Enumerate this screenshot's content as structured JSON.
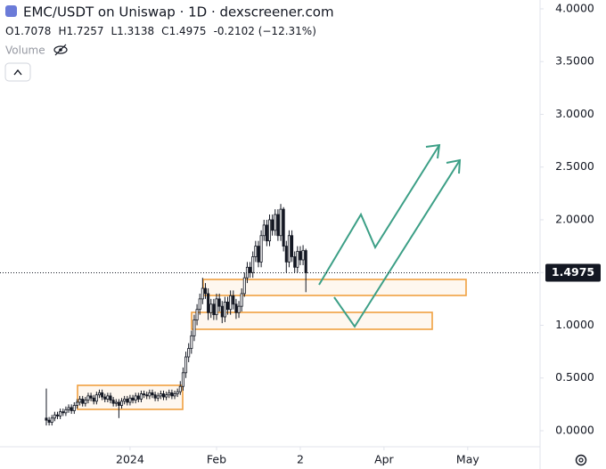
{
  "header": {
    "title": "EMC/USDT on Uniswap · 1D · dexscreener.com",
    "ohlc_keys": [
      "O",
      "H",
      "L",
      "C"
    ],
    "change": "-0.2102 (−12.31%)",
    "volume": "Volume"
  },
  "chart_data": {
    "type": "candlestick",
    "x": [
      -30,
      -29,
      -28,
      -27,
      -26,
      -25,
      -24,
      -23,
      -22,
      -21,
      -20,
      -19,
      -18,
      -17,
      -16,
      -15,
      -14,
      -13,
      -12,
      -11,
      -10,
      -9,
      -8,
      -7,
      -6,
      -5,
      -4,
      -3,
      -2,
      -1,
      0,
      1,
      2,
      3,
      4,
      5,
      6,
      7,
      8,
      9,
      10,
      11,
      12,
      13,
      14,
      15,
      16,
      17,
      18,
      19,
      20,
      21,
      22,
      23,
      24,
      25,
      26,
      27,
      28,
      29,
      30,
      31,
      32,
      33,
      34,
      35,
      36,
      37,
      38,
      39,
      40,
      41,
      42,
      43,
      44,
      45,
      46,
      47,
      48,
      49,
      50,
      51,
      52,
      53,
      54,
      55,
      56,
      57,
      58,
      59,
      60,
      61,
      62,
      63
    ],
    "open": [
      0.12,
      0.1,
      0.08,
      0.12,
      0.15,
      0.14,
      0.18,
      0.17,
      0.2,
      0.22,
      0.19,
      0.24,
      0.27,
      0.3,
      0.26,
      0.29,
      0.33,
      0.31,
      0.28,
      0.34,
      0.36,
      0.32,
      0.3,
      0.33,
      0.29,
      0.26,
      0.27,
      0.24,
      0.28,
      0.3,
      0.27,
      0.31,
      0.29,
      0.33,
      0.3,
      0.35,
      0.34,
      0.33,
      0.36,
      0.34,
      0.31,
      0.33,
      0.35,
      0.32,
      0.34,
      0.36,
      0.33,
      0.35,
      0.37,
      0.42,
      0.55,
      0.7,
      0.78,
      0.9,
      1.05,
      1.15,
      1.25,
      1.35,
      1.3,
      1.12,
      1.2,
      1.1,
      1.25,
      1.18,
      1.08,
      1.22,
      1.15,
      1.28,
      1.2,
      1.12,
      1.18,
      1.3,
      1.45,
      1.55,
      1.5,
      1.65,
      1.75,
      1.6,
      1.85,
      1.95,
      1.8,
      2.0,
      1.9,
      2.05,
      1.85,
      2.1,
      1.75,
      1.6,
      1.85,
      1.65,
      1.55,
      1.7,
      1.62,
      1.7078
    ],
    "high": [
      0.4,
      0.13,
      0.15,
      0.18,
      0.18,
      0.21,
      0.21,
      0.23,
      0.25,
      0.25,
      0.27,
      0.3,
      0.33,
      0.33,
      0.32,
      0.36,
      0.36,
      0.34,
      0.37,
      0.39,
      0.39,
      0.35,
      0.36,
      0.36,
      0.32,
      0.3,
      0.3,
      0.31,
      0.33,
      0.33,
      0.34,
      0.34,
      0.36,
      0.36,
      0.38,
      0.38,
      0.37,
      0.39,
      0.39,
      0.37,
      0.36,
      0.38,
      0.38,
      0.37,
      0.39,
      0.39,
      0.38,
      0.4,
      0.47,
      0.6,
      0.75,
      0.83,
      0.95,
      1.1,
      1.2,
      1.3,
      1.45,
      1.4,
      1.35,
      1.25,
      1.25,
      1.3,
      1.3,
      1.23,
      1.27,
      1.27,
      1.33,
      1.33,
      1.25,
      1.23,
      1.35,
      1.5,
      1.6,
      1.6,
      1.7,
      1.8,
      1.8,
      1.9,
      2.0,
      2.0,
      2.05,
      2.05,
      2.1,
      2.1,
      2.15,
      2.12,
      1.8,
      1.9,
      1.9,
      1.7,
      1.75,
      1.75,
      1.76,
      1.7257
    ],
    "low": [
      0.05,
      0.05,
      0.05,
      0.09,
      0.11,
      0.11,
      0.14,
      0.14,
      0.17,
      0.16,
      0.16,
      0.21,
      0.24,
      0.23,
      0.23,
      0.26,
      0.28,
      0.25,
      0.25,
      0.31,
      0.29,
      0.27,
      0.27,
      0.26,
      0.23,
      0.23,
      0.12,
      0.21,
      0.25,
      0.24,
      0.24,
      0.26,
      0.26,
      0.27,
      0.27,
      0.31,
      0.3,
      0.3,
      0.31,
      0.28,
      0.28,
      0.3,
      0.29,
      0.29,
      0.31,
      0.3,
      0.3,
      0.32,
      0.34,
      0.38,
      0.5,
      0.65,
      0.73,
      0.85,
      1.0,
      1.1,
      1.2,
      1.25,
      1.05,
      1.07,
      1.05,
      1.05,
      1.13,
      1.02,
      1.03,
      1.1,
      1.1,
      1.15,
      1.06,
      1.07,
      1.13,
      1.27,
      1.4,
      1.45,
      1.45,
      1.6,
      1.55,
      1.55,
      1.8,
      1.75,
      1.75,
      1.85,
      1.85,
      1.8,
      1.8,
      1.7,
      1.5,
      1.55,
      1.6,
      1.5,
      1.5,
      1.57,
      1.57,
      1.3138
    ],
    "close": [
      0.1,
      0.08,
      0.12,
      0.15,
      0.14,
      0.18,
      0.17,
      0.2,
      0.22,
      0.19,
      0.24,
      0.27,
      0.3,
      0.26,
      0.29,
      0.33,
      0.31,
      0.28,
      0.34,
      0.36,
      0.32,
      0.3,
      0.33,
      0.29,
      0.26,
      0.27,
      0.24,
      0.28,
      0.3,
      0.27,
      0.31,
      0.29,
      0.33,
      0.3,
      0.35,
      0.34,
      0.33,
      0.36,
      0.34,
      0.31,
      0.33,
      0.35,
      0.32,
      0.34,
      0.36,
      0.33,
      0.35,
      0.37,
      0.42,
      0.55,
      0.7,
      0.78,
      0.9,
      1.05,
      1.15,
      1.25,
      1.35,
      1.3,
      1.12,
      1.2,
      1.1,
      1.25,
      1.18,
      1.08,
      1.22,
      1.15,
      1.28,
      1.2,
      1.12,
      1.18,
      1.3,
      1.45,
      1.55,
      1.5,
      1.65,
      1.75,
      1.6,
      1.85,
      1.95,
      1.8,
      2.0,
      1.9,
      2.05,
      1.85,
      2.1,
      1.75,
      1.6,
      1.85,
      1.65,
      1.55,
      1.7,
      1.62,
      1.71,
      1.4975
    ],
    "up_color": "#ffffff",
    "down_color": "#131722",
    "wick_color": "#131722",
    "xlim": [
      -46.6,
      146.6
    ],
    "xticks": [
      {
        "value": 0,
        "label": "2024"
      },
      {
        "value": 31,
        "label": "Feb"
      },
      {
        "value": 61,
        "label": "2"
      },
      {
        "value": 91,
        "label": "Apr"
      },
      {
        "value": 121,
        "label": "May"
      }
    ],
    "ylim": [
      -0.135,
      4.084
    ],
    "yticks": [
      {
        "value": 0,
        "label": "0.0000"
      },
      {
        "value": 0.5,
        "label": "0.5000"
      },
      {
        "value": 1,
        "label": "1.0000"
      },
      {
        "value": 1.5,
        "label": "1.5000"
      },
      {
        "value": 2,
        "label": "2.0000"
      },
      {
        "value": 2.5,
        "label": "2.5000"
      },
      {
        "value": 3,
        "label": "3.0000"
      },
      {
        "value": 3.5,
        "label": "3.5000"
      },
      {
        "value": 4,
        "label": "4.0000"
      }
    ],
    "grid": false
  }
}
